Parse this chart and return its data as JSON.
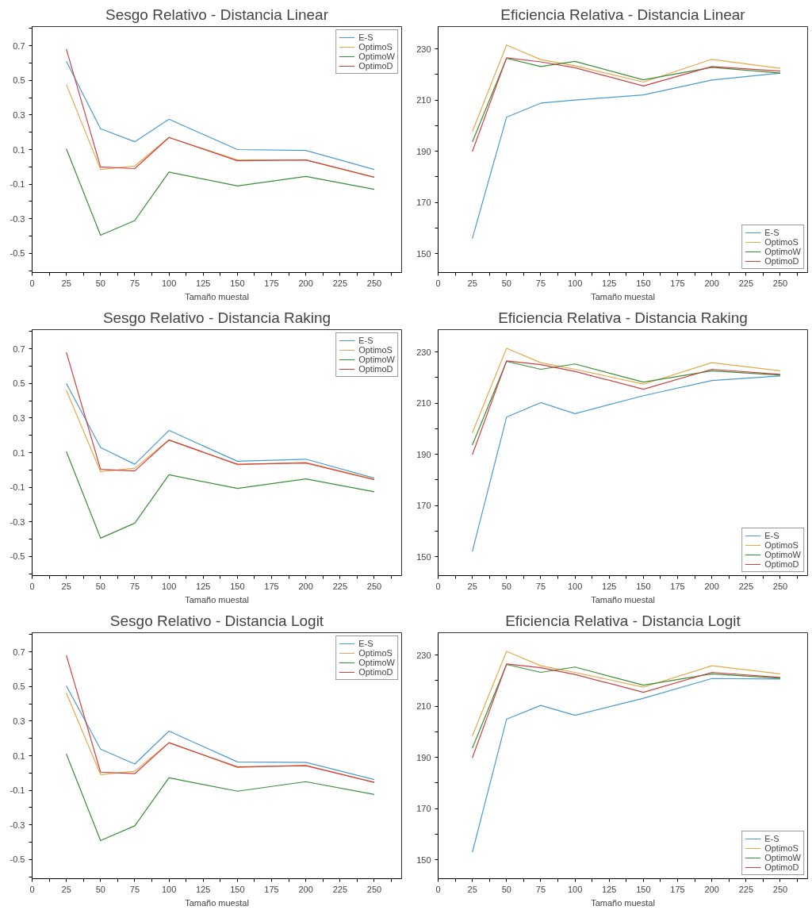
{
  "chart_data": [
    {
      "type": "line",
      "title": "Sesgo Relativo - Distancia Linear",
      "xlabel": "Tamaño muestal",
      "x": [
        25,
        50,
        75,
        100,
        150,
        200,
        250
      ],
      "xlim": [
        0,
        270
      ],
      "xticks": [
        0,
        {
          "value": 12.5,
          "label": null
        },
        25,
        {
          "value": 37.5,
          "label": null
        },
        50,
        {
          "value": 62.5,
          "label": null
        },
        75,
        {
          "value": 87.5,
          "label": null
        },
        100,
        {
          "value": 112.5,
          "label": null
        },
        125,
        {
          "value": 137.5,
          "label": null
        },
        150,
        {
          "value": 162.5,
          "label": null
        },
        175,
        {
          "value": 187.5,
          "label": null
        },
        200,
        {
          "value": 212.5,
          "label": null
        },
        225,
        {
          "value": 237.5,
          "label": null
        },
        250,
        {
          "value": 262.5,
          "label": null
        }
      ],
      "ylim": [
        -0.61,
        0.81
      ],
      "yticks": [
        {
          "value": -0.6,
          "label": null
        },
        -0.5,
        {
          "value": -0.4,
          "label": null
        },
        -0.3,
        {
          "value": -0.2,
          "label": null
        },
        -0.1,
        {
          "value": 0,
          "label": null
        },
        0.1,
        {
          "value": 0.2,
          "label": null
        },
        0.3,
        {
          "value": 0.4,
          "label": null
        },
        0.5,
        {
          "value": 0.6,
          "label": null
        },
        0.7,
        {
          "value": 0.8,
          "label": null
        }
      ],
      "grid": false,
      "legend": "top right",
      "marker": "none",
      "line_style": "solid",
      "series": [
        {
          "name": "E-S",
          "color": "#4a9bd1",
          "values": [
            0.61,
            0.22,
            0.145,
            0.275,
            0.1,
            0.095,
            -0.015
          ]
        },
        {
          "name": "OptimoS",
          "color": "#e8a84a",
          "values": [
            0.475,
            -0.015,
            0.005,
            0.17,
            0.04,
            0.04,
            -0.06
          ]
        },
        {
          "name": "OptimoW",
          "color": "#3a8f3a",
          "values": [
            0.105,
            -0.395,
            -0.31,
            -0.03,
            -0.11,
            -0.055,
            -0.13
          ]
        },
        {
          "name": "OptimoD",
          "color": "#d04040",
          "values": [
            0.68,
            0.0,
            -0.01,
            0.17,
            0.035,
            0.04,
            -0.06
          ]
        }
      ]
    },
    {
      "type": "line",
      "title": "Eficiencia Relativa - Distancia Linear",
      "xlabel": "Tamaño muestal",
      "x": [
        25,
        50,
        75,
        100,
        150,
        200,
        250
      ],
      "xlim": [
        0,
        270
      ],
      "xticks": [
        0,
        {
          "value": 12.5,
          "label": null
        },
        25,
        {
          "value": 37.5,
          "label": null
        },
        50,
        {
          "value": 62.5,
          "label": null
        },
        75,
        {
          "value": 87.5,
          "label": null
        },
        100,
        {
          "value": 112.5,
          "label": null
        },
        125,
        {
          "value": 137.5,
          "label": null
        },
        150,
        {
          "value": 162.5,
          "label": null
        },
        175,
        {
          "value": 187.5,
          "label": null
        },
        200,
        {
          "value": 212.5,
          "label": null
        },
        225,
        {
          "value": 237.5,
          "label": null
        },
        250,
        {
          "value": 262.5,
          "label": null
        }
      ],
      "ylim": [
        142.6,
        238.7
      ],
      "yticks": [
        150,
        {
          "value": 160,
          "label": null
        },
        170,
        {
          "value": 180,
          "label": null
        },
        190,
        {
          "value": 200,
          "label": null
        },
        210,
        {
          "value": 220,
          "label": null
        },
        230
      ],
      "grid": false,
      "legend": "bottom right",
      "marker": "none",
      "line_style": "solid",
      "series": [
        {
          "name": "E-S",
          "color": "#4a9bd1",
          "values": [
            155.9,
            203.3,
            208.8,
            210,
            212,
            217.8,
            220.5
          ]
        },
        {
          "name": "OptimoS",
          "color": "#e8a84a",
          "values": [
            197.6,
            231.5,
            225.8,
            223.4,
            217,
            225.9,
            222.4
          ]
        },
        {
          "name": "OptimoW",
          "color": "#3a8f3a",
          "values": [
            193.6,
            226.3,
            223.1,
            225.1,
            217.9,
            222.8,
            220.5
          ]
        },
        {
          "name": "OptimoD",
          "color": "#d04040",
          "values": [
            189.9,
            226.5,
            224.9,
            222.6,
            215.5,
            223.1,
            221.3
          ]
        }
      ]
    },
    {
      "type": "line",
      "title": "Sesgo Relativo - Distancia Raking",
      "xlabel": "Tamaño muestal",
      "x": [
        25,
        50,
        75,
        100,
        150,
        200,
        250
      ],
      "xlim": [
        0,
        270
      ],
      "xticks": [
        0,
        {
          "value": 12.5,
          "label": null
        },
        25,
        {
          "value": 37.5,
          "label": null
        },
        50,
        {
          "value": 62.5,
          "label": null
        },
        75,
        {
          "value": 87.5,
          "label": null
        },
        100,
        {
          "value": 112.5,
          "label": null
        },
        125,
        {
          "value": 137.5,
          "label": null
        },
        150,
        {
          "value": 162.5,
          "label": null
        },
        175,
        {
          "value": 187.5,
          "label": null
        },
        200,
        {
          "value": 212.5,
          "label": null
        },
        225,
        {
          "value": 237.5,
          "label": null
        },
        250,
        {
          "value": 262.5,
          "label": null
        }
      ],
      "ylim": [
        -0.61,
        0.81
      ],
      "yticks": [
        {
          "value": -0.6,
          "label": null
        },
        -0.5,
        {
          "value": -0.4,
          "label": null
        },
        -0.3,
        {
          "value": -0.2,
          "label": null
        },
        -0.1,
        {
          "value": 0,
          "label": null
        },
        0.1,
        {
          "value": 0.2,
          "label": null
        },
        0.3,
        {
          "value": 0.4,
          "label": null
        },
        0.5,
        {
          "value": 0.6,
          "label": null
        },
        0.7,
        {
          "value": 0.8,
          "label": null
        }
      ],
      "grid": false,
      "legend": "top right",
      "marker": "none",
      "line_style": "solid",
      "series": [
        {
          "name": "E-S",
          "color": "#4a9bd1",
          "values": [
            0.5,
            0.13,
            0.033,
            0.228,
            0.05,
            0.062,
            -0.047
          ]
        },
        {
          "name": "OptimoS",
          "color": "#e8a84a",
          "values": [
            0.46,
            -0.01,
            0.01,
            0.173,
            0.03,
            0.044,
            -0.054
          ]
        },
        {
          "name": "OptimoW",
          "color": "#3a8f3a",
          "values": [
            0.107,
            -0.394,
            -0.307,
            -0.028,
            -0.107,
            -0.052,
            -0.126
          ]
        },
        {
          "name": "OptimoD",
          "color": "#d04040",
          "values": [
            0.68,
            0.003,
            -0.006,
            0.173,
            0.033,
            0.04,
            -0.057
          ]
        }
      ]
    },
    {
      "type": "line",
      "title": "Eficiencia Relativa - Distancia Raking",
      "xlabel": "Tamaño muestal",
      "x": [
        25,
        50,
        75,
        100,
        150,
        200,
        250
      ],
      "xlim": [
        0,
        270
      ],
      "xticks": [
        0,
        {
          "value": 12.5,
          "label": null
        },
        25,
        {
          "value": 37.5,
          "label": null
        },
        50,
        {
          "value": 62.5,
          "label": null
        },
        75,
        {
          "value": 87.5,
          "label": null
        },
        100,
        {
          "value": 112.5,
          "label": null
        },
        125,
        {
          "value": 137.5,
          "label": null
        },
        150,
        {
          "value": 162.5,
          "label": null
        },
        175,
        {
          "value": 187.5,
          "label": null
        },
        200,
        {
          "value": 212.5,
          "label": null
        },
        225,
        {
          "value": 237.5,
          "label": null
        },
        250,
        {
          "value": 262.5,
          "label": null
        }
      ],
      "ylim": [
        142.6,
        238.7
      ],
      "yticks": [
        150,
        {
          "value": 160,
          "label": null
        },
        170,
        {
          "value": 180,
          "label": null
        },
        190,
        {
          "value": 200,
          "label": null
        },
        210,
        {
          "value": 220,
          "label": null
        },
        230
      ],
      "grid": false,
      "legend": "bottom right",
      "marker": "none",
      "line_style": "solid",
      "series": [
        {
          "name": "E-S",
          "color": "#4a9bd1",
          "values": [
            152,
            204.5,
            210.2,
            205.9,
            212.9,
            218.8,
            220.6
          ]
        },
        {
          "name": "OptimoS",
          "color": "#e8a84a",
          "values": [
            198.4,
            231.4,
            225.8,
            223.2,
            217.4,
            225.8,
            222.6
          ]
        },
        {
          "name": "OptimoW",
          "color": "#3a8f3a",
          "values": [
            193.6,
            226.3,
            223.2,
            225.3,
            218.2,
            222.6,
            220.9
          ]
        },
        {
          "name": "OptimoD",
          "color": "#d04040",
          "values": [
            189.8,
            226.5,
            225,
            222.4,
            215.4,
            223.2,
            221.2
          ]
        }
      ]
    },
    {
      "type": "line",
      "title": "Sesgo Relativo - Distancia Logit",
      "xlabel": "Tamaño muestal",
      "x": [
        25,
        50,
        75,
        100,
        150,
        200,
        250
      ],
      "xlim": [
        0,
        270
      ],
      "xticks": [
        0,
        {
          "value": 12.5,
          "label": null
        },
        25,
        {
          "value": 37.5,
          "label": null
        },
        50,
        {
          "value": 62.5,
          "label": null
        },
        75,
        {
          "value": 87.5,
          "label": null
        },
        100,
        {
          "value": 112.5,
          "label": null
        },
        125,
        {
          "value": 137.5,
          "label": null
        },
        150,
        {
          "value": 162.5,
          "label": null
        },
        175,
        {
          "value": 187.5,
          "label": null
        },
        200,
        {
          "value": 212.5,
          "label": null
        },
        225,
        {
          "value": 237.5,
          "label": null
        },
        250,
        {
          "value": 262.5,
          "label": null
        }
      ],
      "ylim": [
        -0.61,
        0.81
      ],
      "yticks": [
        {
          "value": -0.6,
          "label": null
        },
        -0.5,
        {
          "value": -0.4,
          "label": null
        },
        -0.3,
        {
          "value": -0.2,
          "label": null
        },
        -0.1,
        {
          "value": 0,
          "label": null
        },
        0.1,
        {
          "value": 0.2,
          "label": null
        },
        0.3,
        {
          "value": 0.4,
          "label": null
        },
        0.5,
        {
          "value": 0.6,
          "label": null
        },
        0.7,
        {
          "value": 0.8,
          "label": null
        }
      ],
      "grid": false,
      "legend": "top right",
      "marker": "none",
      "line_style": "solid",
      "series": [
        {
          "name": "E-S",
          "color": "#4a9bd1",
          "values": [
            0.503,
            0.138,
            0.052,
            0.242,
            0.064,
            0.062,
            -0.038
          ]
        },
        {
          "name": "OptimoS",
          "color": "#e8a84a",
          "values": [
            0.462,
            -0.009,
            0.01,
            0.175,
            0.032,
            0.045,
            -0.054
          ]
        },
        {
          "name": "OptimoW",
          "color": "#3a8f3a",
          "values": [
            0.11,
            -0.39,
            -0.305,
            -0.028,
            -0.105,
            -0.05,
            -0.124
          ]
        },
        {
          "name": "OptimoD",
          "color": "#d04040",
          "values": [
            0.68,
            0.005,
            -0.004,
            0.175,
            0.035,
            0.042,
            -0.054
          ]
        }
      ]
    },
    {
      "type": "line",
      "title": "Eficiencia Relativa - Distancia Logit",
      "xlabel": "Tamaño muestal",
      "x": [
        25,
        50,
        75,
        100,
        150,
        200,
        250
      ],
      "xlim": [
        0,
        270
      ],
      "xticks": [
        0,
        {
          "value": 12.5,
          "label": null
        },
        25,
        {
          "value": 37.5,
          "label": null
        },
        50,
        {
          "value": 62.5,
          "label": null
        },
        75,
        {
          "value": 87.5,
          "label": null
        },
        100,
        {
          "value": 112.5,
          "label": null
        },
        125,
        {
          "value": 137.5,
          "label": null
        },
        150,
        {
          "value": 162.5,
          "label": null
        },
        175,
        {
          "value": 187.5,
          "label": null
        },
        200,
        {
          "value": 212.5,
          "label": null
        },
        225,
        {
          "value": 237.5,
          "label": null
        },
        250,
        {
          "value": 262.5,
          "label": null
        }
      ],
      "ylim": [
        142.6,
        238.7
      ],
      "yticks": [
        150,
        {
          "value": 160,
          "label": null
        },
        170,
        {
          "value": 180,
          "label": null
        },
        190,
        {
          "value": 200,
          "label": null
        },
        210,
        {
          "value": 220,
          "label": null
        },
        230
      ],
      "grid": false,
      "legend": "bottom right",
      "marker": "none",
      "line_style": "solid",
      "series": [
        {
          "name": "E-S",
          "color": "#4a9bd1",
          "values": [
            152.9,
            204.9,
            210.3,
            206.4,
            213.1,
            220.8,
            220.6
          ]
        },
        {
          "name": "OptimoS",
          "color": "#e8a84a",
          "values": [
            198.4,
            231.4,
            225.8,
            223.2,
            217.4,
            225.8,
            222.6
          ]
        },
        {
          "name": "OptimoW",
          "color": "#3a8f3a",
          "values": [
            193.6,
            226.3,
            223.2,
            225.3,
            218.2,
            222.6,
            220.9
          ]
        },
        {
          "name": "OptimoD",
          "color": "#d04040",
          "values": [
            189.8,
            226.5,
            225,
            222.4,
            215.4,
            223.2,
            221.2
          ]
        }
      ]
    }
  ]
}
